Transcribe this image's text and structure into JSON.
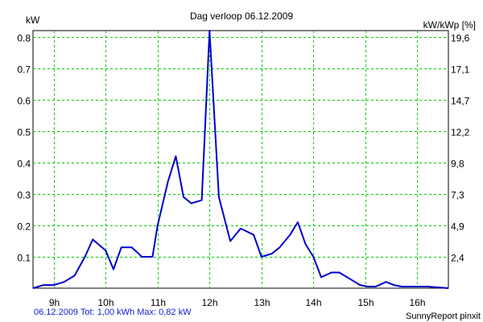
{
  "chart_data": {
    "type": "line",
    "title": "Dag  verloop 06.12.2009",
    "ylabel_left": "kW",
    "ylabel_right": "kW/kWp [%]",
    "x_ticks": [
      "9h",
      "10h",
      "11h",
      "12h",
      "13h",
      "14h",
      "15h",
      "16h"
    ],
    "x_tick_hours": [
      9,
      10,
      11,
      12,
      13,
      14,
      15,
      16
    ],
    "xlim": [
      8.6,
      16.6
    ],
    "ylim": [
      0,
      0.82
    ],
    "y_ticks_left": [
      0.1,
      0.2,
      0.3,
      0.4,
      0.5,
      0.6,
      0.7,
      0.8
    ],
    "y_ticks_left_labels": [
      "0.1",
      "0.2",
      "0.3",
      "0.4",
      "0.5",
      "0.6",
      "0.7",
      "0.8"
    ],
    "y_ticks_right_labels": [
      "2,4",
      "4,9",
      "7,3",
      "9,8",
      "12,2",
      "14,7",
      "17,1",
      "19,6"
    ],
    "grid": true,
    "series": [
      {
        "line_color": "#0000cc",
        "x": [
          8.6,
          8.8,
          9.0,
          9.2,
          9.4,
          9.6,
          9.75,
          10.0,
          10.15,
          10.3,
          10.5,
          10.7,
          10.9,
          11.0,
          11.2,
          11.35,
          11.5,
          11.65,
          11.85,
          12.0,
          12.18,
          12.4,
          12.6,
          12.85,
          13.0,
          13.2,
          13.35,
          13.55,
          13.7,
          13.85,
          14.0,
          14.15,
          14.35,
          14.5,
          14.7,
          14.9,
          15.05,
          15.2,
          15.4,
          15.55,
          15.7,
          15.85,
          16.0,
          16.2,
          16.6
        ],
        "y": [
          0.0,
          0.01,
          0.01,
          0.02,
          0.04,
          0.1,
          0.155,
          0.12,
          0.06,
          0.13,
          0.13,
          0.1,
          0.1,
          0.2,
          0.34,
          0.42,
          0.29,
          0.27,
          0.28,
          0.82,
          0.29,
          0.15,
          0.19,
          0.17,
          0.1,
          0.11,
          0.13,
          0.17,
          0.21,
          0.14,
          0.1,
          0.035,
          0.05,
          0.05,
          0.03,
          0.01,
          0.005,
          0.005,
          0.02,
          0.01,
          0.005,
          0.005,
          0.005,
          0.005,
          0.0
        ]
      }
    ]
  },
  "footer": {
    "left": "06.12.2009 Tot: 1,00 kWh Max: 0,82 kW",
    "right": "SunnyReport pinxit"
  }
}
